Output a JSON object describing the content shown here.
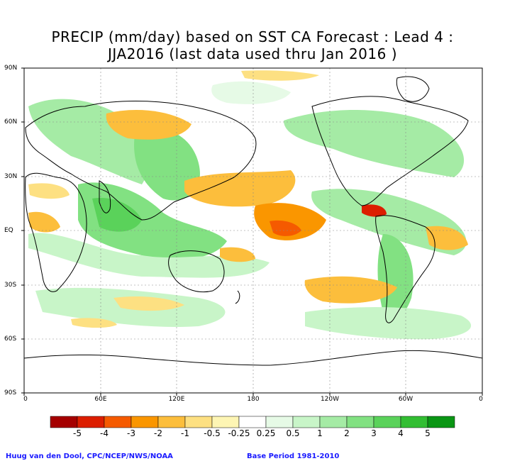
{
  "title": {
    "line1": "PRECIP (mm/day) based on SST CA Forecast : Lead 4 :",
    "line2": "JJA2016 (last data used thru Jan 2016 )"
  },
  "axes": {
    "lat_labels": [
      "90N",
      "60N",
      "30N",
      "EQ",
      "30S",
      "60S",
      "90S"
    ],
    "lon_labels": [
      "0",
      "60E",
      "120E",
      "180",
      "120W",
      "60W",
      "0"
    ]
  },
  "colorbar": {
    "colors": [
      "#a50000",
      "#dc1e00",
      "#f55a00",
      "#fa9600",
      "#fcbe3c",
      "#fde082",
      "#fdf5b4",
      "#ffffff",
      "#e6fae6",
      "#c8f5c8",
      "#a5eba5",
      "#82e182",
      "#5ad25a",
      "#32be32",
      "#0a9614"
    ],
    "labels": [
      "-5",
      "-4",
      "-3",
      "-2",
      "-1",
      "-0.5",
      "-0.25",
      "0.25",
      "0.5",
      "1",
      "2",
      "3",
      "4",
      "5"
    ]
  },
  "credits": {
    "left": "Huug van den Dool, CPC/NCEP/NWS/NOAA",
    "right": "Base Period 1981-2010"
  }
}
